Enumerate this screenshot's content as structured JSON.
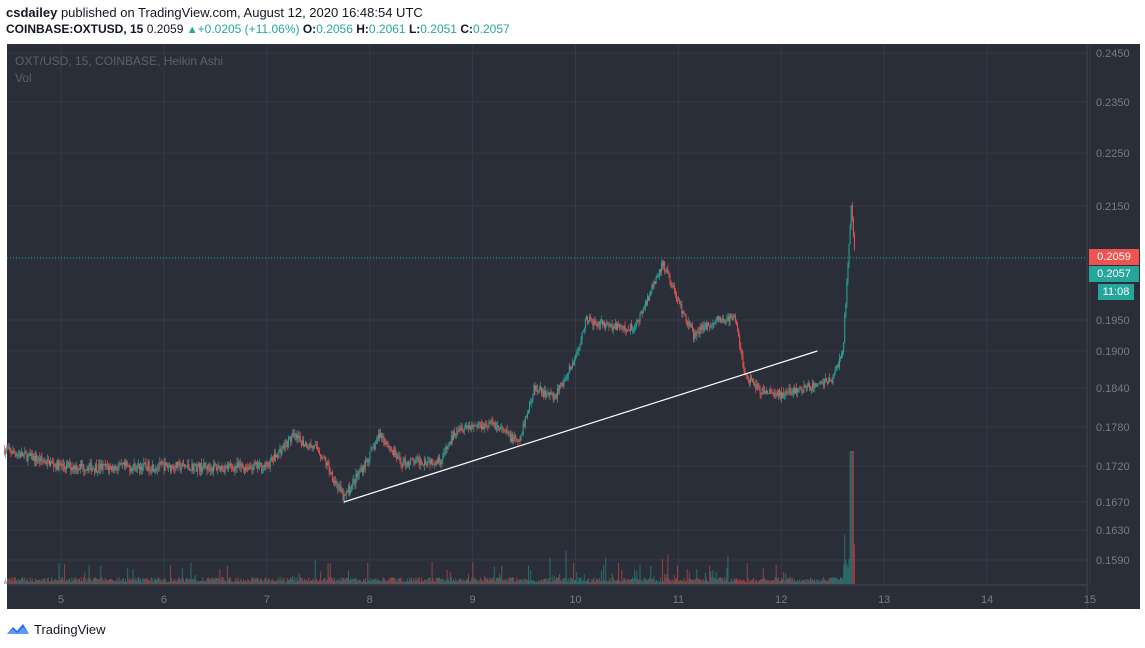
{
  "header": {
    "author": "csdailey",
    "published_text": " published on TradingView.com, August 12, 2020 16:48:54 UTC",
    "symbol": "COINBASE:OXTUSD, 15",
    "price": "0.2059",
    "change": "+0.0205 (+11.06%)",
    "o_label": "O:",
    "o_value": "0.2056",
    "h_label": "H:",
    "h_value": "0.2061",
    "l_label": "L:",
    "l_value": "0.2051",
    "c_label": "C:",
    "c_value": "0.2057"
  },
  "overlay": {
    "title": "OXT/USD, 15, COINBASE, Heikin Ashi",
    "volume_label": "Vol"
  },
  "price_tags": {
    "last_price": "0.2059",
    "close_price": "0.2057",
    "countdown": "11:08"
  },
  "footer": {
    "brand": "TradingView"
  },
  "colors": {
    "background": "#2a2e39",
    "grid": "#363a45",
    "up": "#26a69a",
    "down": "#ef5350",
    "axis_text": "#787b86"
  },
  "chart_data": {
    "type": "candlestick",
    "style": "Heikin Ashi",
    "title": "OXT/USD, 15, COINBASE, Heikin Ashi",
    "y_axis": {
      "ticks": [
        "0.2450",
        "0.2350",
        "0.2250",
        "0.2150",
        "0.1950",
        "0.1900",
        "0.1840",
        "0.1780",
        "0.1720",
        "0.1670",
        "0.1630",
        "0.1590"
      ]
    },
    "x_axis": {
      "ticks": [
        "5",
        "6",
        "7",
        "8",
        "9",
        "10",
        "11",
        "12",
        "13",
        "14",
        "15"
      ]
    },
    "price_path": [
      {
        "day": 4.45,
        "price": 0.1745
      },
      {
        "day": 5.0,
        "price": 0.172
      },
      {
        "day": 5.5,
        "price": 0.1718
      },
      {
        "day": 6.0,
        "price": 0.172
      },
      {
        "day": 6.5,
        "price": 0.1718
      },
      {
        "day": 7.0,
        "price": 0.172
      },
      {
        "day": 7.25,
        "price": 0.1765
      },
      {
        "day": 7.5,
        "price": 0.1745
      },
      {
        "day": 7.75,
        "price": 0.1675
      },
      {
        "day": 8.0,
        "price": 0.1735
      },
      {
        "day": 8.1,
        "price": 0.177
      },
      {
        "day": 8.3,
        "price": 0.1725
      },
      {
        "day": 8.7,
        "price": 0.173
      },
      {
        "day": 8.85,
        "price": 0.178
      },
      {
        "day": 9.2,
        "price": 0.1785
      },
      {
        "day": 9.45,
        "price": 0.1755
      },
      {
        "day": 9.6,
        "price": 0.184
      },
      {
        "day": 9.8,
        "price": 0.1825
      },
      {
        "day": 10.0,
        "price": 0.189
      },
      {
        "day": 10.1,
        "price": 0.195
      },
      {
        "day": 10.5,
        "price": 0.1935
      },
      {
        "day": 10.6,
        "price": 0.1945
      },
      {
        "day": 10.85,
        "price": 0.205
      },
      {
        "day": 11.05,
        "price": 0.196
      },
      {
        "day": 11.15,
        "price": 0.1925
      },
      {
        "day": 11.35,
        "price": 0.195
      },
      {
        "day": 11.55,
        "price": 0.1955
      },
      {
        "day": 11.65,
        "price": 0.186
      },
      {
        "day": 11.8,
        "price": 0.1835
      },
      {
        "day": 12.0,
        "price": 0.183
      },
      {
        "day": 12.25,
        "price": 0.184
      },
      {
        "day": 12.5,
        "price": 0.1855
      },
      {
        "day": 12.6,
        "price": 0.19
      },
      {
        "day": 12.68,
        "price": 0.215
      },
      {
        "day": 12.72,
        "price": 0.2059
      }
    ],
    "last_price": 0.2059,
    "trendline": {
      "start": {
        "day": 7.75,
        "price": 0.167
      },
      "end": {
        "day": 12.35,
        "price": 0.19
      }
    },
    "volume_note": "volume bars at bottom, spike near day 12.7"
  }
}
